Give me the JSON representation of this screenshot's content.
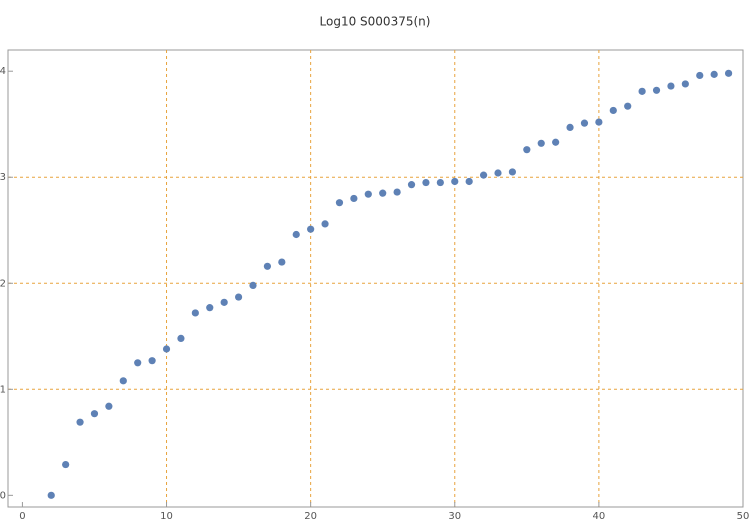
{
  "chart_data": {
    "type": "scatter",
    "title": "Log10 S000375(n)",
    "x": [
      2,
      3,
      4,
      5,
      6,
      7,
      8,
      9,
      10,
      11,
      12,
      13,
      14,
      15,
      16,
      17,
      18,
      19,
      20,
      21,
      22,
      23,
      24,
      25,
      26,
      27,
      28,
      29,
      30,
      31,
      32,
      33,
      34,
      35,
      36,
      37,
      38,
      39,
      40,
      41,
      42,
      43,
      44,
      45,
      46,
      47,
      48,
      49
    ],
    "series": [
      {
        "color": "#5e81b5",
        "values": [
          0,
          0.29,
          0.69,
          0.77,
          0.84,
          1.08,
          1.25,
          1.27,
          1.38,
          1.48,
          1.72,
          1.77,
          1.82,
          1.87,
          1.98,
          2.16,
          2.2,
          2.46,
          2.51,
          2.56,
          2.76,
          2.8,
          2.84,
          2.85,
          2.86,
          2.93,
          2.95,
          2.95,
          2.96,
          2.96,
          3.02,
          3.04,
          3.05,
          3.26,
          3.32,
          3.33,
          3.47,
          3.51,
          3.52,
          3.63,
          3.67,
          3.81,
          3.82,
          3.86,
          3.88,
          3.96,
          3.97,
          3.98
        ]
      }
    ],
    "xlim": [
      -1,
      50
    ],
    "ylim": [
      -0.11,
      4.2
    ],
    "xticks": [
      0,
      10,
      20,
      30,
      40,
      50
    ],
    "yticks": [
      0,
      1,
      2,
      3,
      4
    ],
    "xgrid": [
      10,
      20,
      30,
      40
    ],
    "ygrid": [
      1,
      2,
      3
    ],
    "grid_color": "#e8a33d"
  }
}
